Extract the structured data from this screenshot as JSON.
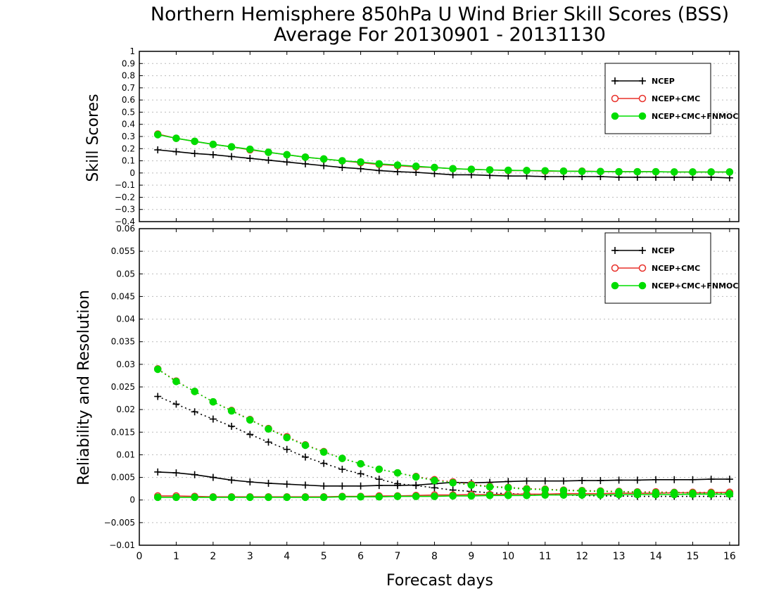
{
  "title": "Northern Hemisphere 850hPa U Wind Brier Skill Scores (BSS)",
  "subtitle": "Average For 20130901 - 20131130",
  "xlabel": "Forecast days",
  "legend_labels": [
    "NCEP",
    "NCEP+CMC",
    "NCEP+CMC+FNMOC"
  ],
  "colors": {
    "NCEP": "#000000",
    "NCEP+CMC": "#e8302a",
    "NCEP+CMC+FNMOC": "#00dd00"
  },
  "chart_data": [
    {
      "type": "line",
      "ylabel": "Skill Scores",
      "xlim": [
        0,
        16.25
      ],
      "ylim": [
        -0.4,
        1
      ],
      "grid": true,
      "legend_position": "top-right",
      "x_ticks": [
        "0",
        "1",
        "2",
        "3",
        "4",
        "5",
        "6",
        "7",
        "8",
        "9",
        "10",
        "11",
        "12",
        "13",
        "14",
        "15",
        "16"
      ],
      "y_ticks": [
        "1",
        "0.9",
        "0.8",
        "0.7",
        "0.6",
        "0.5",
        "0.4",
        "0.3",
        "0.2",
        "0.1",
        "0",
        "−0.1",
        "−0.2",
        "−0.3",
        "−0.4"
      ],
      "x": [
        0.5,
        1,
        1.5,
        2,
        2.5,
        3,
        3.5,
        4,
        4.5,
        5,
        5.5,
        6,
        6.5,
        7,
        7.5,
        8,
        8.5,
        9,
        9.5,
        10,
        10.5,
        11,
        11.5,
        12,
        12.5,
        13,
        13.5,
        14,
        14.5,
        15,
        15.5,
        16
      ],
      "series": [
        {
          "name": "NCEP",
          "style": "solid",
          "marker": "plus",
          "values": [
            0.19,
            0.175,
            0.16,
            0.15,
            0.135,
            0.12,
            0.105,
            0.09,
            0.075,
            0.06,
            0.045,
            0.035,
            0.02,
            0.01,
            0.005,
            -0.005,
            -0.015,
            -0.015,
            -0.02,
            -0.025,
            -0.025,
            -0.03,
            -0.03,
            -0.03,
            -0.03,
            -0.035,
            -0.035,
            -0.035,
            -0.035,
            -0.035,
            -0.035,
            -0.04
          ]
        },
        {
          "name": "NCEP+CMC",
          "style": "solid",
          "marker": "open-circle",
          "values": [
            0.32,
            0.285,
            0.26,
            0.235,
            0.215,
            0.19,
            0.17,
            0.15,
            0.13,
            0.115,
            0.1,
            0.085,
            0.07,
            0.06,
            0.05,
            0.045,
            0.035,
            0.03,
            0.025,
            0.02,
            0.02,
            0.015,
            0.015,
            0.015,
            0.012,
            0.01,
            0.01,
            0.01,
            0.008,
            0.008,
            0.008,
            0.008
          ]
        },
        {
          "name": "NCEP+CMC+FNMOC",
          "style": "solid",
          "marker": "filled-circle",
          "values": [
            0.315,
            0.285,
            0.26,
            0.235,
            0.215,
            0.195,
            0.17,
            0.15,
            0.13,
            0.115,
            0.1,
            0.09,
            0.075,
            0.065,
            0.055,
            0.045,
            0.035,
            0.03,
            0.025,
            0.022,
            0.02,
            0.018,
            0.015,
            0.013,
            0.012,
            0.01,
            0.01,
            0.01,
            0.008,
            0.008,
            0.008,
            0.008
          ]
        }
      ]
    },
    {
      "type": "line",
      "ylabel": "Reliability and Resolution",
      "xlim": [
        0,
        16.25
      ],
      "ylim": [
        -0.01,
        0.06
      ],
      "grid": true,
      "legend_position": "top-right",
      "x_ticks": [
        "0",
        "1",
        "2",
        "3",
        "4",
        "5",
        "6",
        "7",
        "8",
        "9",
        "10",
        "11",
        "12",
        "13",
        "14",
        "15",
        "16"
      ],
      "y_ticks": [
        "0.06",
        "0.055",
        "0.05",
        "0.045",
        "0.04",
        "0.035",
        "0.03",
        "0.025",
        "0.02",
        "0.015",
        "0.01",
        "0.005",
        "0",
        "−0.005",
        "−0.01"
      ],
      "x": [
        0.5,
        1,
        1.5,
        2,
        2.5,
        3,
        3.5,
        4,
        4.5,
        5,
        5.5,
        6,
        6.5,
        7,
        7.5,
        8,
        8.5,
        9,
        9.5,
        10,
        10.5,
        11,
        11.5,
        12,
        12.5,
        13,
        13.5,
        14,
        14.5,
        15,
        15.5,
        16
      ],
      "series": [
        {
          "name": "NCEP",
          "metric": "resolution",
          "style": "dotted",
          "marker": "plus",
          "values": [
            0.0229,
            0.0212,
            0.0195,
            0.0179,
            0.0163,
            0.0145,
            0.0128,
            0.0112,
            0.0095,
            0.0081,
            0.0068,
            0.0058,
            0.0046,
            0.0036,
            0.0032,
            0.0027,
            0.0022,
            0.0019,
            0.0016,
            0.0014,
            0.0013,
            0.0012,
            0.0011,
            0.001,
            0.0009,
            0.0009,
            0.0008,
            0.0008,
            0.0008,
            0.0008,
            0.0008,
            0.0008
          ]
        },
        {
          "name": "NCEP",
          "metric": "reliability",
          "style": "solid",
          "marker": "plus",
          "values": [
            0.0062,
            0.006,
            0.0056,
            0.005,
            0.0044,
            0.004,
            0.0037,
            0.0035,
            0.0033,
            0.0031,
            0.0031,
            0.0031,
            0.0032,
            0.0032,
            0.0033,
            0.0036,
            0.0039,
            0.0038,
            0.0039,
            0.0041,
            0.0042,
            0.0042,
            0.0042,
            0.0043,
            0.0043,
            0.0044,
            0.0044,
            0.0045,
            0.0045,
            0.0045,
            0.0046,
            0.0046
          ]
        },
        {
          "name": "NCEP+CMC",
          "metric": "resolution",
          "style": "dotted",
          "marker": "open-circle",
          "values": [
            0.029,
            0.0263,
            0.024,
            0.0217,
            0.0198,
            0.0178,
            0.0158,
            0.014,
            0.0122,
            0.0107,
            0.0092,
            0.008,
            0.0068,
            0.006,
            0.0052,
            0.0045,
            0.004,
            0.0035,
            0.003,
            0.0028,
            0.0025,
            0.0024,
            0.0022,
            0.0021,
            0.002,
            0.0019,
            0.0018,
            0.0018,
            0.0017,
            0.0017,
            0.0017,
            0.0017
          ]
        },
        {
          "name": "NCEP+CMC",
          "metric": "reliability",
          "style": "solid",
          "marker": "open-circle",
          "values": [
            0.0009,
            0.0009,
            0.0008,
            0.0007,
            0.0007,
            0.0007,
            0.0007,
            0.0007,
            0.0007,
            0.0007,
            0.0008,
            0.0008,
            0.0009,
            0.0009,
            0.001,
            0.0011,
            0.0011,
            0.0012,
            0.0012,
            0.0013,
            0.0013,
            0.0013,
            0.0014,
            0.0014,
            0.0014,
            0.0015,
            0.0015,
            0.0015,
            0.0016,
            0.0016,
            0.0016,
            0.0017
          ]
        },
        {
          "name": "NCEP+CMC+FNMOC",
          "metric": "resolution",
          "style": "dotted",
          "marker": "filled-circle",
          "values": [
            0.0289,
            0.0262,
            0.024,
            0.0217,
            0.0197,
            0.0177,
            0.0157,
            0.0138,
            0.0121,
            0.0106,
            0.0092,
            0.008,
            0.0068,
            0.006,
            0.0051,
            0.0043,
            0.0038,
            0.0033,
            0.0029,
            0.0027,
            0.0024,
            0.0023,
            0.0021,
            0.002,
            0.0019,
            0.0018,
            0.0017,
            0.0016,
            0.0016,
            0.0015,
            0.0015,
            0.0014
          ]
        },
        {
          "name": "NCEP+CMC+FNMOC",
          "metric": "reliability",
          "style": "solid",
          "marker": "filled-circle",
          "values": [
            0.0006,
            0.0006,
            0.0006,
            0.0006,
            0.0006,
            0.0006,
            0.0006,
            0.0006,
            0.0006,
            0.0006,
            0.0007,
            0.0007,
            0.0007,
            0.0008,
            0.0008,
            0.0008,
            0.0009,
            0.0009,
            0.001,
            0.001,
            0.001,
            0.0011,
            0.0011,
            0.0011,
            0.0011,
            0.0012,
            0.0012,
            0.0012,
            0.0012,
            0.0013,
            0.0013,
            0.0013
          ]
        }
      ]
    }
  ]
}
